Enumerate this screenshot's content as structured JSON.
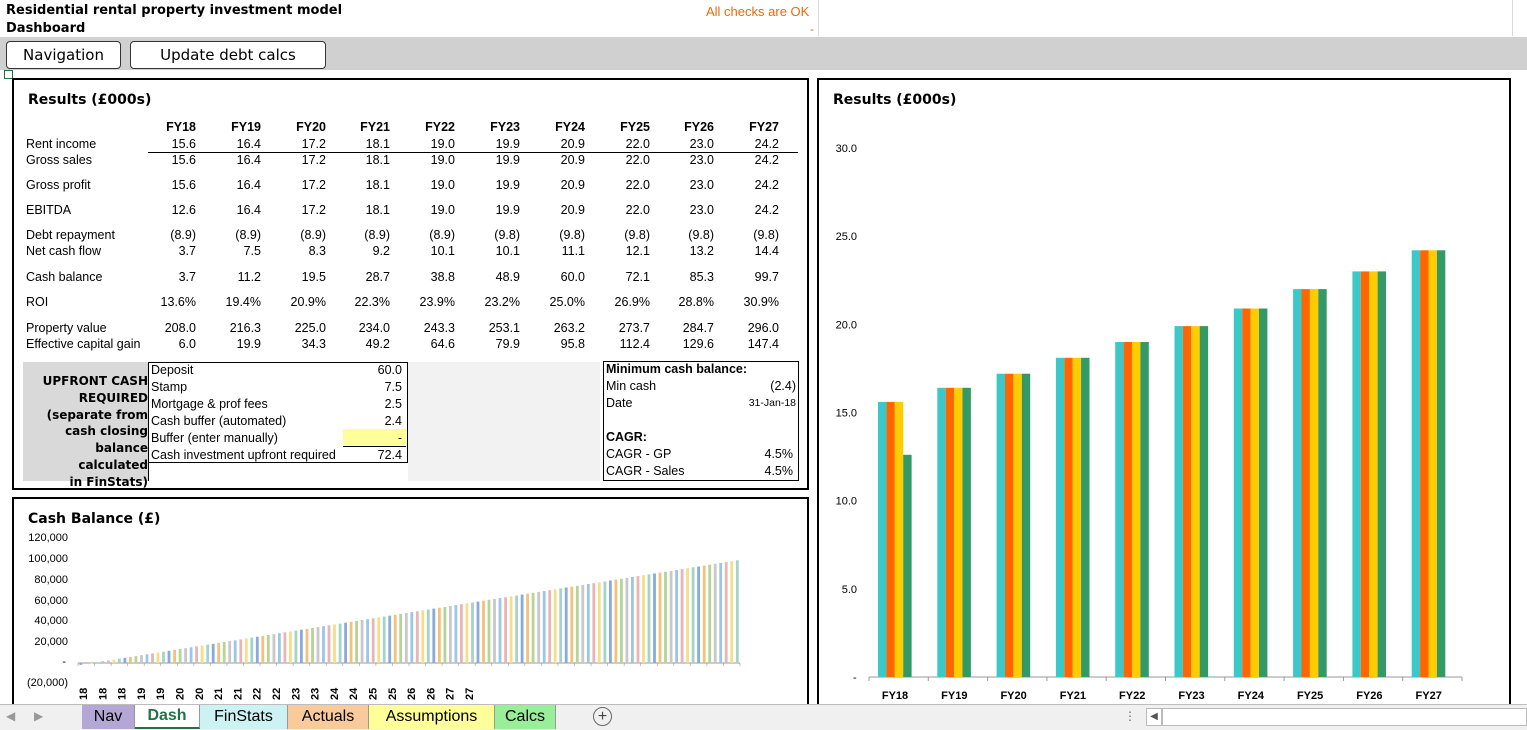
{
  "header": {
    "title": "Residential rental property investment model",
    "subtitle": "Dashboard",
    "checks": "All checks are OK",
    "checks_value": "-"
  },
  "toolbar": {
    "nav_label": "Navigation",
    "update_label": "Update debt calcs"
  },
  "results": {
    "title": "Results (£000s)",
    "years": [
      "FY18",
      "FY19",
      "FY20",
      "FY21",
      "FY22",
      "FY23",
      "FY24",
      "FY25",
      "FY26",
      "FY27"
    ],
    "rows": [
      {
        "label": "Rent income",
        "values": [
          "15.6",
          "16.4",
          "17.2",
          "18.1",
          "19.0",
          "19.9",
          "20.9",
          "22.0",
          "23.0",
          "24.2"
        ]
      },
      {
        "label": "Gross sales",
        "values": [
          "15.6",
          "16.4",
          "17.2",
          "18.1",
          "19.0",
          "19.9",
          "20.9",
          "22.0",
          "23.0",
          "24.2"
        ]
      },
      {
        "label": "Gross profit",
        "values": [
          "15.6",
          "16.4",
          "17.2",
          "18.1",
          "19.0",
          "19.9",
          "20.9",
          "22.0",
          "23.0",
          "24.2"
        ]
      },
      {
        "label": "EBITDA",
        "values": [
          "12.6",
          "16.4",
          "17.2",
          "18.1",
          "19.0",
          "19.9",
          "20.9",
          "22.0",
          "23.0",
          "24.2"
        ]
      },
      {
        "label": "Debt repayment",
        "values": [
          "(8.9)",
          "(8.9)",
          "(8.9)",
          "(8.9)",
          "(8.9)",
          "(9.8)",
          "(9.8)",
          "(9.8)",
          "(9.8)",
          "(9.8)"
        ]
      },
      {
        "label": "Net cash flow",
        "values": [
          "3.7",
          "7.5",
          "8.3",
          "9.2",
          "10.1",
          "10.1",
          "11.1",
          "12.1",
          "13.2",
          "14.4"
        ]
      },
      {
        "label": "Cash balance",
        "values": [
          "3.7",
          "11.2",
          "19.5",
          "28.7",
          "38.8",
          "48.9",
          "60.0",
          "72.1",
          "85.3",
          "99.7"
        ]
      },
      {
        "label": "ROI",
        "values": [
          "13.6%",
          "19.4%",
          "20.9%",
          "22.3%",
          "23.9%",
          "23.2%",
          "25.0%",
          "26.9%",
          "28.8%",
          "30.9%"
        ]
      },
      {
        "label": "Property value",
        "values": [
          "208.0",
          "216.3",
          "225.0",
          "234.0",
          "243.3",
          "253.1",
          "263.2",
          "273.7",
          "284.7",
          "296.0"
        ]
      },
      {
        "label": "Effective capital gain",
        "values": [
          "6.0",
          "19.9",
          "34.3",
          "49.2",
          "64.6",
          "79.9",
          "95.8",
          "112.4",
          "129.6",
          "147.4"
        ]
      }
    ]
  },
  "upfront": {
    "heading_lines": [
      "UPFRONT CASH",
      "REQUIRED",
      "(separate from",
      "cash closing",
      "balance calculated",
      "in FinStats)"
    ],
    "items": [
      {
        "label": "Deposit",
        "value": "60.0"
      },
      {
        "label": "Stamp",
        "value": "7.5"
      },
      {
        "label": "Mortgage & prof fees",
        "value": "2.5"
      },
      {
        "label": "Cash buffer (automated)",
        "value": "2.4"
      },
      {
        "label": "Buffer (enter manually)",
        "value": "-"
      },
      {
        "label": "Cash investment upfront required",
        "value": "72.4"
      }
    ]
  },
  "mincash": {
    "title": "Minimum cash balance:",
    "min_label": "Min cash",
    "min_value": "(2.4)",
    "date_label": "Date",
    "date_value": "31-Jan-18",
    "cagr_title": "CAGR:",
    "gp_label": "CAGR - GP",
    "gp_value": "4.5%",
    "sales_label": "CAGR - Sales",
    "sales_value": "4.5%"
  },
  "cash_chart": {
    "title": "Cash Balance (£)",
    "y_ticks": [
      "120,000",
      "100,000",
      "80,000",
      "60,000",
      "40,000",
      "20,000",
      "-",
      "(20,000)"
    ],
    "x_ticks": [
      "18",
      "18",
      "18",
      "19",
      "19",
      "20",
      "20",
      "21",
      "21",
      "22",
      "22",
      "23",
      "23",
      "24",
      "24",
      "25",
      "25",
      "26",
      "26",
      "27",
      "27"
    ]
  },
  "chart_data": [
    {
      "type": "bar",
      "title": "Results (£000s)",
      "categories": [
        "FY18",
        "FY19",
        "FY20",
        "FY21",
        "FY22",
        "FY23",
        "FY24",
        "FY25",
        "FY26",
        "FY27"
      ],
      "y_ticks": [
        "30.0",
        "25.0",
        "20.0",
        "15.0",
        "10.0",
        "5.0",
        "-"
      ],
      "ylim": [
        0,
        30
      ],
      "series": [
        {
          "color": "#3cc8c8",
          "values": [
            15.6,
            16.4,
            17.2,
            18.1,
            19.0,
            19.9,
            20.9,
            22.0,
            23.0,
            24.2
          ]
        },
        {
          "color": "#ff6600",
          "values": [
            15.6,
            16.4,
            17.2,
            18.1,
            19.0,
            19.9,
            20.9,
            22.0,
            23.0,
            24.2
          ]
        },
        {
          "color": "#ffcc00",
          "values": [
            15.6,
            16.4,
            17.2,
            18.1,
            19.0,
            19.9,
            20.9,
            22.0,
            23.0,
            24.2
          ]
        },
        {
          "color": "#339966",
          "values": [
            12.6,
            16.4,
            17.2,
            18.1,
            19.0,
            19.9,
            20.9,
            22.0,
            23.0,
            24.2
          ]
        }
      ]
    },
    {
      "type": "bar",
      "title": "Cash Balance (£)",
      "ylim": [
        -20000,
        120000
      ],
      "bar_count": 120,
      "start_value": -1800,
      "end_value": 99700
    }
  ],
  "tabs": [
    {
      "label": "Nav",
      "color": "#b4a7d6"
    },
    {
      "label": "Dash",
      "color": "#ffffff"
    },
    {
      "label": "FinStats",
      "color": "#ccf2f4"
    },
    {
      "label": "Actuals",
      "color": "#f9cb9c"
    },
    {
      "label": "Assumptions",
      "color": "#ffff99"
    },
    {
      "label": "Calcs",
      "color": "#99ee99"
    }
  ]
}
